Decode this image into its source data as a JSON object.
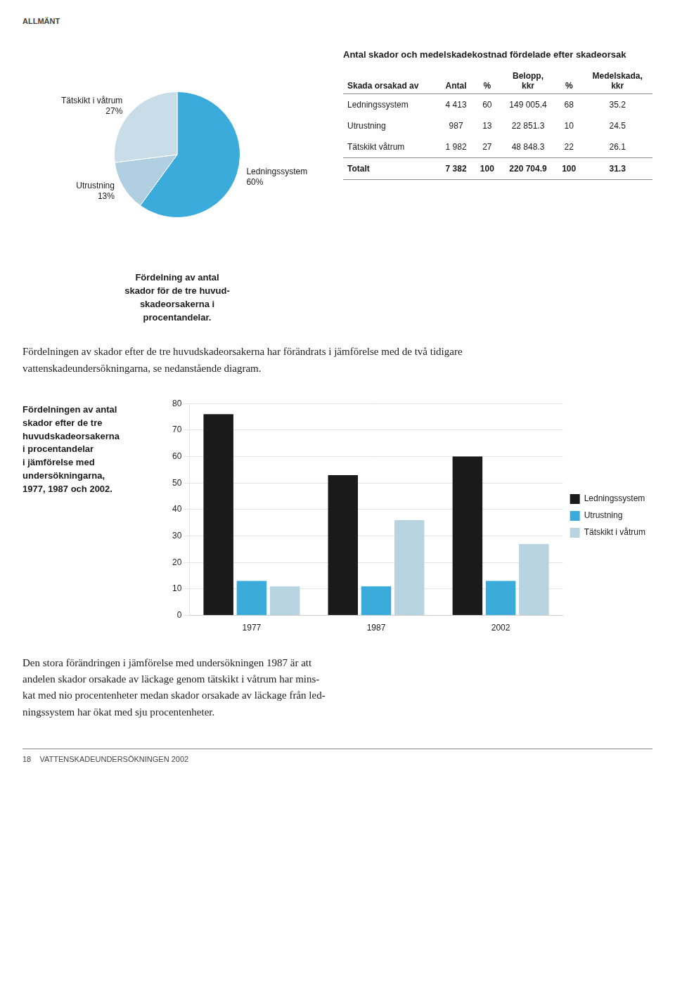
{
  "page_header": "ALLMÄNT",
  "page_footer": "18    VATTENSKADEUNDERSÖKNINGEN 2002",
  "paragraphs": [
    [
      "Fördelningen av skador efter de tre huvudskadeorsakerna har förändrats i jämförelse med de två tidigare",
      "vattenskadeundersökningarna, se nedanstående diagram."
    ],
    [
      "Den stora förändringen i jämförelse med undersökningen 1987 är att",
      "andelen skador orsakade av läckage genom tätskikt i våtrum har mins-",
      "kat med nio procentenheter medan skador orsakade av läckage från led-",
      "ningssystem har ökat med sju procentenheter."
    ]
  ],
  "chart_data": [
    {
      "type": "pie",
      "title": "Fördelning av antal\nskador för de tre huvud-\nskadeorsakerna i\nprocentandelar.",
      "categories": [
        "Ledningssystem",
        "Utrustning",
        "Tätskikt i våtrum"
      ],
      "values": [
        60,
        13,
        27
      ],
      "value_labels": [
        "60%",
        "13%",
        "27%"
      ],
      "colors": [
        "#3aabdb",
        "#b0cfe0",
        "#c8dde8"
      ],
      "data_labels": true
    },
    {
      "type": "table",
      "title": "Antal skador och medelskadekostnad fördelade efter skadeorsak",
      "columns": [
        "Skada orsakad av",
        "Antal",
        "%",
        "Belopp,\nkkr",
        "%",
        "Medelskada,\nkkr"
      ],
      "rows": [
        [
          "Ledningssystem",
          "4 413",
          "60",
          "149 005.4",
          "68",
          "35.2"
        ],
        [
          "Utrustning",
          "987",
          "13",
          "22 851.3",
          "10",
          "24.5"
        ],
        [
          "Tätskikt våtrum",
          "1 982",
          "27",
          "48 848.3",
          "22",
          "26.1"
        ],
        [
          "Totalt",
          "7 382",
          "100",
          "220 704.9",
          "100",
          "31.3"
        ]
      ]
    },
    {
      "type": "bar",
      "title": "Fördelningen av antal\nskador efter de tre\nhuvudskadeorsakerna\ni procentandelar\ni jämförelse med\nundersökningarna,\n1977, 1987 och 2002.",
      "categories": [
        "1977",
        "1987",
        "2002"
      ],
      "series": [
        {
          "name": "Ledningssystem",
          "color": "#1a1a1a",
          "values": [
            76,
            53,
            60
          ]
        },
        {
          "name": "Utrustning",
          "color": "#3aabdb",
          "values": [
            13,
            11,
            13
          ]
        },
        {
          "name": "Tätskikt i våtrum",
          "color": "#b8d4e0",
          "values": [
            11,
            36,
            27
          ]
        }
      ],
      "ylim": [
        0,
        80
      ],
      "yticks": [
        0,
        10,
        20,
        30,
        40,
        50,
        60,
        70,
        80
      ],
      "grid": true,
      "legend": "right"
    }
  ]
}
